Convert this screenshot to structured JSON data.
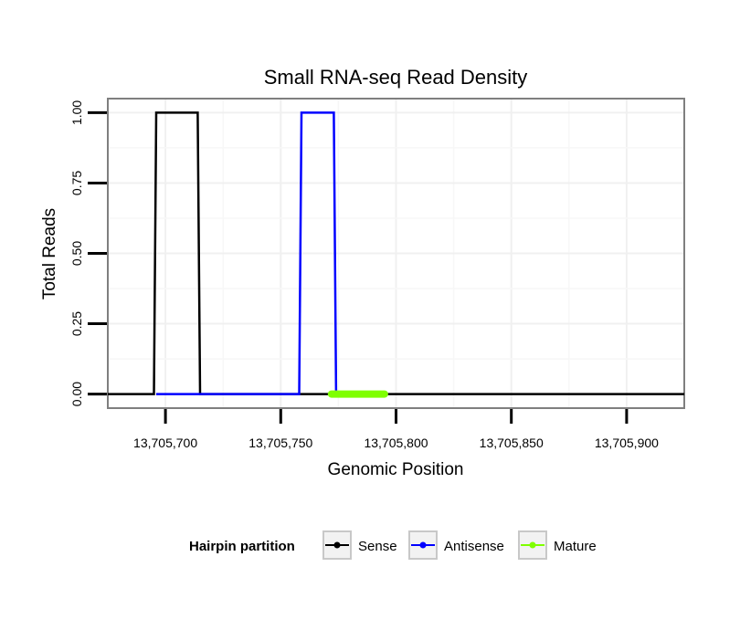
{
  "chart_data": {
    "type": "line",
    "title": "Small RNA-seq Read Density",
    "xlabel": "Genomic Position",
    "ylabel": "Total Reads",
    "xlim": [
      13705675,
      13705925
    ],
    "ylim": [
      -0.05,
      1.05
    ],
    "x_ticks": [
      13705700,
      13705750,
      13705800,
      13705850,
      13705900
    ],
    "x_tick_labels": [
      "13,705,700",
      "13,705,750",
      "13,705,800",
      "13,705,850",
      "13,705,900"
    ],
    "y_ticks": [
      0,
      0.25,
      0.5,
      0.75,
      1
    ],
    "y_tick_labels": [
      "0.00",
      "0.25",
      "0.50",
      "0.75",
      "1.00"
    ],
    "grid": true,
    "legend": {
      "title": "Hairpin partition",
      "position": "bottom",
      "entries": [
        {
          "name": "Sense",
          "color": "#000000"
        },
        {
          "name": "Antisense",
          "color": "#0000ff"
        },
        {
          "name": "Mature",
          "color": "#7fff00"
        }
      ]
    },
    "series": [
      {
        "name": "Sense",
        "color": "#000000",
        "points": [
          [
            13705675,
            0
          ],
          [
            13705695,
            0
          ],
          [
            13705696,
            1
          ],
          [
            13705714,
            1
          ],
          [
            13705715,
            0
          ],
          [
            13705925,
            0
          ]
        ]
      },
      {
        "name": "Antisense",
        "color": "#0000ff",
        "points": [
          [
            13705696,
            0
          ],
          [
            13705714,
            0
          ],
          [
            13705715,
            0
          ],
          [
            13705758,
            0
          ],
          [
            13705759,
            1
          ],
          [
            13705773,
            1
          ],
          [
            13705774,
            0
          ]
        ]
      },
      {
        "name": "Mature",
        "color": "#7fff00",
        "points": [
          [
            13705772,
            0
          ],
          [
            13705795,
            0
          ]
        ]
      }
    ]
  }
}
